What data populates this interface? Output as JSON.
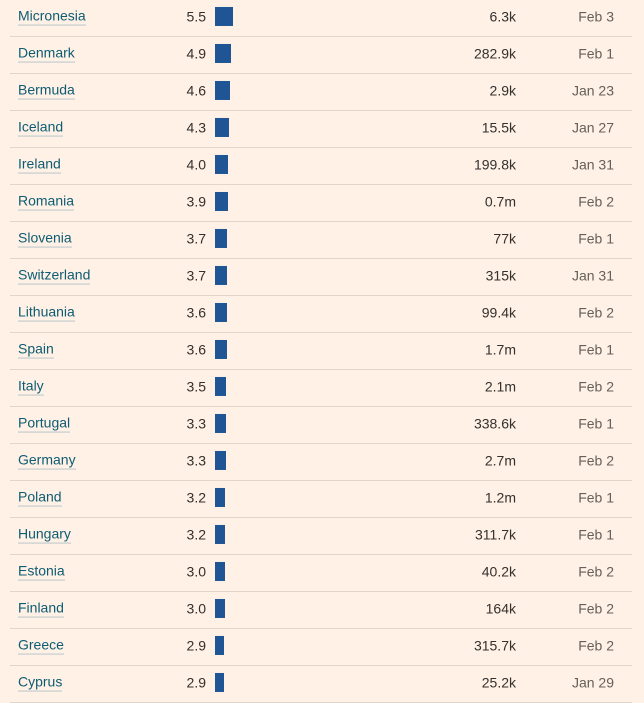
{
  "rows": [
    {
      "country": "Micronesia",
      "value": "5.5",
      "rate": 5.5,
      "cases": "6.3k",
      "date": "Feb 3"
    },
    {
      "country": "Denmark",
      "value": "4.9",
      "rate": 4.9,
      "cases": "282.9k",
      "date": "Feb 1"
    },
    {
      "country": "Bermuda",
      "value": "4.6",
      "rate": 4.6,
      "cases": "2.9k",
      "date": "Jan 23"
    },
    {
      "country": "Iceland",
      "value": "4.3",
      "rate": 4.3,
      "cases": "15.5k",
      "date": "Jan 27"
    },
    {
      "country": "Ireland",
      "value": "4.0",
      "rate": 4.0,
      "cases": "199.8k",
      "date": "Jan 31"
    },
    {
      "country": "Romania",
      "value": "3.9",
      "rate": 3.9,
      "cases": "0.7m",
      "date": "Feb 2"
    },
    {
      "country": "Slovenia",
      "value": "3.7",
      "rate": 3.7,
      "cases": "77k",
      "date": "Feb 1"
    },
    {
      "country": "Switzerland",
      "value": "3.7",
      "rate": 3.7,
      "cases": "315k",
      "date": "Jan 31"
    },
    {
      "country": "Lithuania",
      "value": "3.6",
      "rate": 3.6,
      "cases": "99.4k",
      "date": "Feb 2"
    },
    {
      "country": "Spain",
      "value": "3.6",
      "rate": 3.6,
      "cases": "1.7m",
      "date": "Feb 1"
    },
    {
      "country": "Italy",
      "value": "3.5",
      "rate": 3.5,
      "cases": "2.1m",
      "date": "Feb 2"
    },
    {
      "country": "Portugal",
      "value": "3.3",
      "rate": 3.3,
      "cases": "338.6k",
      "date": "Feb 1"
    },
    {
      "country": "Germany",
      "value": "3.3",
      "rate": 3.3,
      "cases": "2.7m",
      "date": "Feb 2"
    },
    {
      "country": "Poland",
      "value": "3.2",
      "rate": 3.2,
      "cases": "1.2m",
      "date": "Feb 1"
    },
    {
      "country": "Hungary",
      "value": "3.2",
      "rate": 3.2,
      "cases": "311.7k",
      "date": "Feb 1"
    },
    {
      "country": "Estonia",
      "value": "3.0",
      "rate": 3.0,
      "cases": "40.2k",
      "date": "Feb 2"
    },
    {
      "country": "Finland",
      "value": "3.0",
      "rate": 3.0,
      "cases": "164k",
      "date": "Feb 2"
    },
    {
      "country": "Greece",
      "value": "2.9",
      "rate": 2.9,
      "cases": "315.7k",
      "date": "Feb 2"
    },
    {
      "country": "Cyprus",
      "value": "2.9",
      "rate": 2.9,
      "cases": "25.2k",
      "date": "Jan 29"
    }
  ],
  "colors": {
    "bar": "#1f5595",
    "background": "#fff1e5"
  }
}
